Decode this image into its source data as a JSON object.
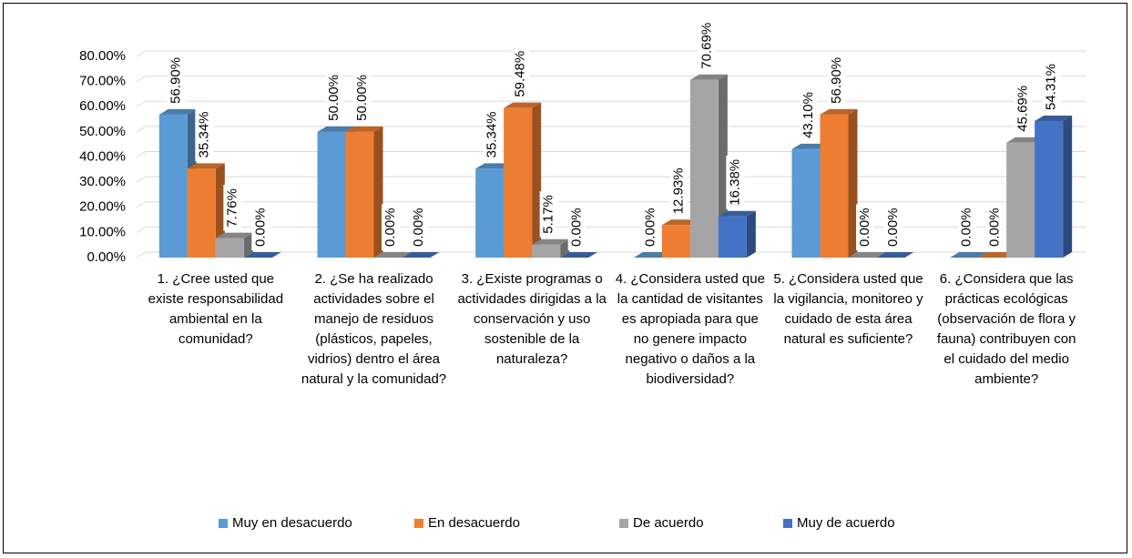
{
  "chart_data": {
    "type": "bar3d",
    "categories": [
      "1. ¿Cree usted que existe responsabilidad ambiental en la comunidad?",
      "2. ¿Se ha realizado actividades sobre el manejo de residuos (plásticos, papeles, vidrios) dentro el área natural y la comunidad?",
      "3. ¿Existe programas o actividades dirigidas a la conservación y uso sostenible de la naturaleza?",
      "4. ¿Considera usted que la cantidad de visitantes es apropiada para que no genere impacto negativo o daños a la biodiversidad?",
      "5. ¿Considera usted que la vigilancia, monitoreo y cuidado de esta área natural es suficiente?",
      "6. ¿Considera que las prácticas ecológicas (observación de flora y fauna) contribuyen con el cuidado del medio ambiente?"
    ],
    "series": [
      {
        "name": "Muy en desacuerdo",
        "color": "#5b9bd5",
        "values": [
          56.9,
          50.0,
          35.34,
          0,
          43.1,
          0
        ],
        "value_labels": [
          "56.90%",
          "50.00%",
          "35.34%",
          "0.00%",
          "43.10%",
          "0.00%"
        ]
      },
      {
        "name": "En desacuerdo",
        "color": "#ed7d31",
        "values": [
          35.34,
          50.0,
          59.48,
          12.93,
          56.9,
          0
        ],
        "value_labels": [
          "35.34%",
          "50.00%",
          "59.48%",
          "12.93%",
          "56.90%",
          "0.00%"
        ]
      },
      {
        "name": "De acuerdo",
        "color": "#a5a5a5",
        "values": [
          7.76,
          0,
          5.17,
          70.69,
          0,
          45.69
        ],
        "value_labels": [
          "7.76%",
          "0.00%",
          "5.17%",
          "70.69%",
          "0.00%",
          "45.69%"
        ]
      },
      {
        "name": "Muy de acuerdo",
        "color": "#4472c4",
        "values": [
          0,
          0,
          0,
          16.38,
          0,
          54.31
        ],
        "value_labels": [
          "0.00%",
          "0.00%",
          "0.00%",
          "16.38%",
          "0.00%",
          "54.31%"
        ]
      }
    ],
    "ylim": [
      0,
      80
    ],
    "yticks": [
      {
        "value": 0,
        "label": "0.00%"
      },
      {
        "value": 10,
        "label": "10.00%"
      },
      {
        "value": 20,
        "label": "20.00%"
      },
      {
        "value": 30,
        "label": "30.00%"
      },
      {
        "value": 40,
        "label": "40.00%"
      },
      {
        "value": 50,
        "label": "50.00%"
      },
      {
        "value": 60,
        "label": "60.00%"
      },
      {
        "value": 70,
        "label": "70.00%"
      },
      {
        "value": 80,
        "label": "80.00%"
      }
    ],
    "grid": true,
    "legend": "bottom"
  }
}
